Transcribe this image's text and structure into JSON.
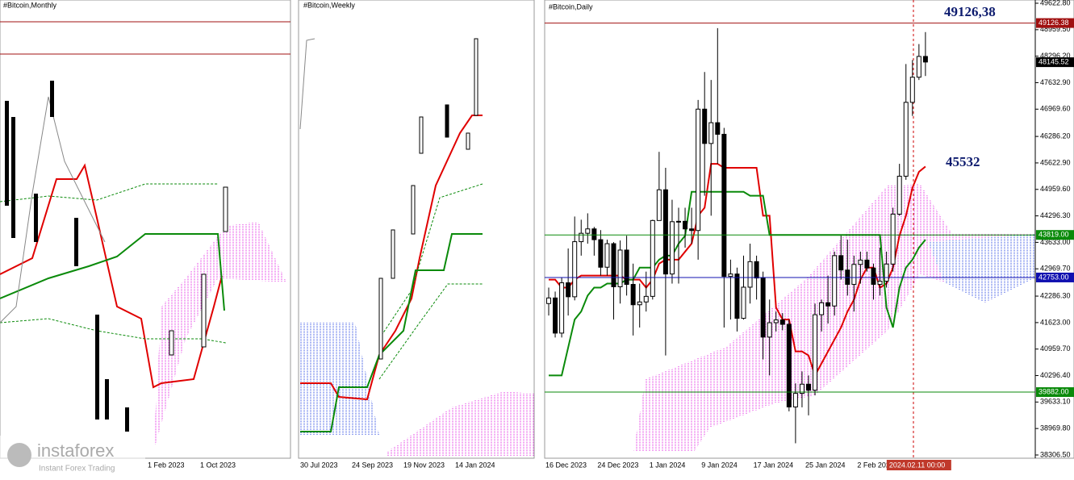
{
  "panels": {
    "monthly": {
      "title": "#Bitcoin,Monthly",
      "dates": [
        "1 Feb 2023",
        "1 Oct 2023"
      ]
    },
    "weekly": {
      "title": "#Bitcoin,Weekly",
      "dates": [
        "30 Jul 2023",
        "24 Sep 2023",
        "19 Nov 2023",
        "14 Jan 2024"
      ]
    }
  },
  "logo": {
    "name": "instaforex",
    "tagline": "Instant Forex Trading"
  },
  "chart_data": {
    "type": "candlestick",
    "title": "#Bitcoin,Daily",
    "annotations": [
      "49126,38",
      "45532"
    ],
    "crosshair_label": "2024.02.11 00:00",
    "categories": [
      "16 Dec 2023",
      null,
      null,
      null,
      null,
      null,
      null,
      null,
      "24 Dec 2023",
      null,
      null,
      null,
      null,
      null,
      null,
      null,
      "1 Jan 2024",
      null,
      null,
      null,
      null,
      null,
      null,
      null,
      "9 Jan 2024",
      null,
      null,
      null,
      null,
      null,
      null,
      null,
      "17 Jan 2024",
      null,
      null,
      null,
      null,
      null,
      null,
      null,
      "25 Jan 2024",
      null,
      null,
      null,
      null,
      null,
      null,
      null,
      "2 Feb 2024",
      null,
      null,
      null,
      null,
      null,
      null,
      null,
      null,
      null,
      null
    ],
    "candles": [
      [
        42100,
        42500,
        41800,
        42240
      ],
      [
        42240,
        42400,
        41250,
        41360
      ],
      [
        41360,
        42750,
        41250,
        42620
      ],
      [
        42620,
        43480,
        41800,
        42270
      ],
      [
        42270,
        44280,
        42180,
        43650
      ],
      [
        43650,
        44200,
        43300,
        43860
      ],
      [
        43860,
        44360,
        43600,
        43970
      ],
      [
        43970,
        44020,
        43300,
        43700
      ],
      [
        43700,
        43940,
        42800,
        43010
      ],
      [
        43010,
        43700,
        42800,
        43600
      ],
      [
        43600,
        43640,
        41700,
        42520
      ],
      [
        42520,
        43680,
        42100,
        43440
      ],
      [
        43440,
        43800,
        42300,
        42580
      ],
      [
        42580,
        43100,
        41300,
        42070
      ],
      [
        42070,
        42600,
        41500,
        42140
      ],
      [
        42140,
        42900,
        41900,
        42280
      ],
      [
        42280,
        44200,
        42200,
        44180
      ],
      [
        44180,
        45900,
        44200,
        44950
      ],
      [
        44950,
        45500,
        40800,
        42840
      ],
      [
        42840,
        44700,
        42600,
        44150
      ],
      [
        44150,
        44500,
        42600,
        44160
      ],
      [
        44160,
        44500,
        43500,
        43970
      ],
      [
        43970,
        44500,
        43600,
        43930
      ],
      [
        43930,
        47200,
        43200,
        46970
      ],
      [
        46970,
        47900,
        44800,
        46110
      ],
      [
        46110,
        47700,
        44300,
        46630
      ],
      [
        46630,
        49000,
        45600,
        46340
      ],
      [
        46340,
        46500,
        41500,
        42780
      ],
      [
        42780,
        43200,
        41700,
        42840
      ],
      [
        42840,
        43000,
        41400,
        41730
      ],
      [
        41730,
        43300,
        41700,
        42510
      ],
      [
        42510,
        43600,
        42100,
        43150
      ],
      [
        43150,
        43300,
        42200,
        42740
      ],
      [
        42740,
        42900,
        40700,
        41260
      ],
      [
        41260,
        42200,
        40300,
        41620
      ],
      [
        41620,
        41900,
        41400,
        41690
      ],
      [
        41690,
        41860,
        41430,
        41580
      ],
      [
        41580,
        41700,
        39400,
        39510
      ],
      [
        39510,
        40100,
        38600,
        39850
      ],
      [
        39850,
        40400,
        39500,
        40080
      ],
      [
        40080,
        40300,
        39300,
        39930
      ],
      [
        39930,
        42100,
        39800,
        41820
      ],
      [
        41820,
        42200,
        41400,
        42120
      ],
      [
        42120,
        42800,
        41600,
        42040
      ],
      [
        42040,
        43400,
        41800,
        43300
      ],
      [
        43300,
        43800,
        42700,
        42940
      ],
      [
        42940,
        43700,
        42300,
        42580
      ],
      [
        42580,
        43300,
        41900,
        43080
      ],
      [
        43080,
        43400,
        42600,
        43190
      ],
      [
        43190,
        43400,
        42900,
        42990
      ],
      [
        42990,
        43100,
        42200,
        42580
      ],
      [
        42580,
        43500,
        42300,
        42660
      ],
      [
        42660,
        43400,
        42500,
        43090
      ],
      [
        43090,
        44500,
        42900,
        44340
      ],
      [
        44340,
        45600,
        44300,
        45290
      ],
      [
        45290,
        48100,
        45200,
        47140
      ],
      [
        47140,
        48200,
        46800,
        47770
      ],
      [
        47770,
        48600,
        47700,
        48290
      ],
      [
        48290,
        48900,
        47800,
        48150
      ]
    ],
    "series": [
      {
        "color": "#e00000",
        "values": [
          42700,
          42700,
          42500,
          42500,
          42700,
          42800,
          42800,
          42800,
          42800,
          42800,
          42800,
          42800,
          42700,
          42700,
          42700,
          42500,
          42700,
          43100,
          43200,
          43200,
          43200,
          43400,
          43600,
          44300,
          44500,
          45600,
          45600,
          45500,
          45500,
          45500,
          45500,
          45500,
          45500,
          44300,
          44300,
          42000,
          41700,
          41700,
          40900,
          40900,
          40800,
          40300,
          40600,
          40900,
          41200,
          41500,
          41900,
          42200,
          42700,
          43000,
          43000,
          42500,
          42600,
          43000,
          43800,
          44300,
          45000,
          45400,
          45532
        ]
      },
      {
        "color": "#0a8a0a",
        "values": [
          40300,
          40300,
          40300,
          41000,
          41700,
          41900,
          42300,
          42500,
          42500,
          42600,
          42600,
          42600,
          42700,
          42700,
          43000,
          43000,
          43000,
          43200,
          43300,
          43300,
          43600,
          43800,
          44900,
          44900,
          44900,
          44900,
          44900,
          44900,
          44900,
          44900,
          44900,
          44800,
          44800,
          44800,
          43819,
          43819,
          43819,
          43819,
          43819,
          43819,
          43819,
          43819,
          43819,
          43819,
          43819,
          43819,
          43819,
          43819,
          43819,
          43819,
          43819,
          43819,
          42000,
          41500,
          42500,
          43000,
          43200,
          43500,
          43700
        ]
      }
    ],
    "levels": [
      {
        "value": 49126.38,
        "color": "#a01010"
      },
      {
        "value": 43819,
        "label": "43819.00",
        "color": "#0a8a0a"
      },
      {
        "value": 42753,
        "label": "42753.00",
        "color": "#1010b0"
      },
      {
        "value": 39882,
        "label": "39882.00",
        "color": "#0a8a0a"
      }
    ],
    "last_price": 48145.52,
    "ylim": [
      38306.5,
      49622.8
    ],
    "yticks": [
      {
        "value": 49622.8,
        "label": "49622.80"
      },
      {
        "value": 48959.5,
        "label": "48959.50"
      },
      {
        "value": 48296.2,
        "label": "48296.20"
      },
      {
        "value": 47632.9,
        "label": "47632.90"
      },
      {
        "value": 46969.6,
        "label": "46969.60"
      },
      {
        "value": 46286.2,
        "label": "46286.20"
      },
      {
        "value": 45622.9,
        "label": "45622.90"
      },
      {
        "value": 44959.6,
        "label": "44959.60"
      },
      {
        "value": 44296.3,
        "label": "44296.30"
      },
      {
        "value": 43633,
        "label": "43633.00"
      },
      {
        "value": 42969.7,
        "label": "42969.70"
      },
      {
        "value": 42286.3,
        "label": "42286.30"
      },
      {
        "value": 41623,
        "label": "41623.00"
      },
      {
        "value": 40959.7,
        "label": "40959.70"
      },
      {
        "value": 40296.4,
        "label": "40296.40"
      },
      {
        "value": 39633.1,
        "label": "39633.10"
      },
      {
        "value": 38969.8,
        "label": "38969.80"
      },
      {
        "value": 38306.5,
        "label": "38306.50"
      }
    ]
  }
}
